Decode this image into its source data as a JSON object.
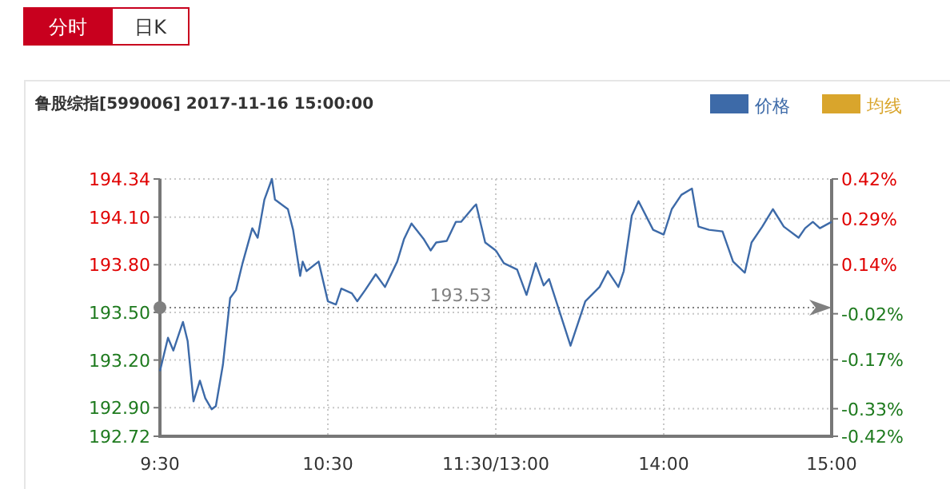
{
  "chart_data": [
    {
      "type": "line",
      "title": "鲁股综指[599006] 2017-11-16 15:00:00",
      "annotations": [
        "分时",
        "日K"
      ],
      "xlim": [
        9.5,
        11.5
      ],
      "xticks": [
        {
          "value": 9.5,
          "label": "9:30"
        },
        {
          "value": 10.5,
          "label": "10:30"
        },
        {
          "value": 11.5,
          "label": "11:30/13:00"
        }
      ],
      "ylim": [
        192.72,
        194.34
      ],
      "yticks": [
        {
          "value": 192.72,
          "label": "192.72"
        },
        {
          "value": 192.9,
          "label": "192.90"
        },
        {
          "value": 193.2,
          "label": "193.20"
        },
        {
          "value": 193.5,
          "label": "193.50"
        },
        {
          "value": 193.8,
          "label": "193.80"
        },
        {
          "value": 194.1,
          "label": "194.10"
        },
        {
          "value": 194.34,
          "label": "194.34"
        }
      ],
      "grid": true,
      "ref_lines": [
        {
          "axis": "y",
          "value": 193.53,
          "label": "193.53",
          "color": "#808080",
          "line_style": "dotted"
        }
      ],
      "series": [
        {
          "color": "#3d6aa8",
          "x": [
            9.5,
            9.548,
            9.58,
            9.637,
            9.665,
            9.7,
            9.738,
            9.77,
            9.808,
            9.833,
            9.875,
            9.918,
            9.953,
            9.992,
            10.05,
            10.082,
            10.122,
            10.167,
            10.185,
            10.262,
            10.293,
            10.335,
            10.35,
            10.373,
            10.445,
            10.5,
            10.548,
            10.58,
            10.643,
            10.675,
            10.722,
            10.785,
            10.84,
            10.913,
            10.953,
            10.998,
            11.072,
            11.112,
            11.145,
            11.208,
            11.262,
            11.293,
            11.373,
            11.383,
            11.437,
            11.5
          ],
          "values": [
            193.13,
            193.34,
            193.26,
            193.44,
            193.32,
            192.94,
            193.07,
            192.96,
            192.89,
            192.91,
            193.17,
            193.59,
            193.64,
            193.81,
            194.03,
            193.97,
            194.21,
            194.34,
            194.21,
            194.15,
            194.02,
            193.73,
            193.82,
            193.76,
            193.82,
            193.57,
            193.55,
            193.65,
            193.62,
            193.57,
            193.64,
            193.74,
            193.66,
            193.82,
            193.96,
            194.06,
            193.96,
            193.89,
            193.94,
            193.95,
            194.07,
            194.07,
            194.17,
            194.18,
            193.94,
            193.89
          ]
        }
      ]
    },
    {
      "type": "line",
      "xlim": [
        13,
        15
      ],
      "xticks": [
        {
          "value": 13,
          "label": null
        },
        {
          "value": 14,
          "label": "14:00"
        },
        {
          "value": 15,
          "label": "15:00"
        }
      ],
      "ylim": [
        192.72,
        194.34
      ],
      "y2lim": [
        -0.42,
        0.42
      ],
      "y2ticks": [
        {
          "value": -0.42,
          "label": "-0.42%"
        },
        {
          "value": -0.33,
          "label": "-0.33%"
        },
        {
          "value": -0.17,
          "label": "-0.17%"
        },
        {
          "value": -0.02,
          "label": "-0.02%"
        },
        {
          "value": 0.14,
          "label": "0.14%"
        },
        {
          "value": 0.29,
          "label": "0.29%"
        },
        {
          "value": 0.42,
          "label": "0.42%"
        }
      ],
      "grid": true,
      "legend": "top right",
      "ref_lines": [
        {
          "axis": "y",
          "value": 193.53,
          "color": "#808080",
          "line_style": "dotted"
        }
      ],
      "series": [
        {
          "name": "价格",
          "color": "#3d6aa8",
          "x": [
            13,
            13.048,
            13.127,
            13.183,
            13.238,
            13.285,
            13.317,
            13.445,
            13.533,
            13.618,
            13.667,
            13.73,
            13.762,
            13.81,
            13.85,
            13.937,
            14,
            14.048,
            14.105,
            14.168,
            14.207,
            14.27,
            14.35,
            14.413,
            14.483,
            14.523,
            14.587,
            14.65,
            14.715,
            14.803,
            14.842,
            14.888,
            14.93,
            15
          ],
          "values": [
            193.89,
            193.81,
            193.77,
            193.61,
            193.81,
            193.67,
            193.71,
            193.29,
            193.57,
            193.66,
            193.76,
            193.66,
            193.76,
            194.11,
            194.2,
            194.02,
            193.99,
            194.15,
            194.24,
            194.28,
            194.04,
            194.02,
            194.01,
            193.82,
            193.75,
            193.94,
            194.04,
            194.15,
            194.04,
            193.97,
            194.03,
            194.07,
            194.03,
            194.07
          ]
        },
        {
          "name": "均线",
          "color": "#d9a52c"
        }
      ]
    }
  ]
}
